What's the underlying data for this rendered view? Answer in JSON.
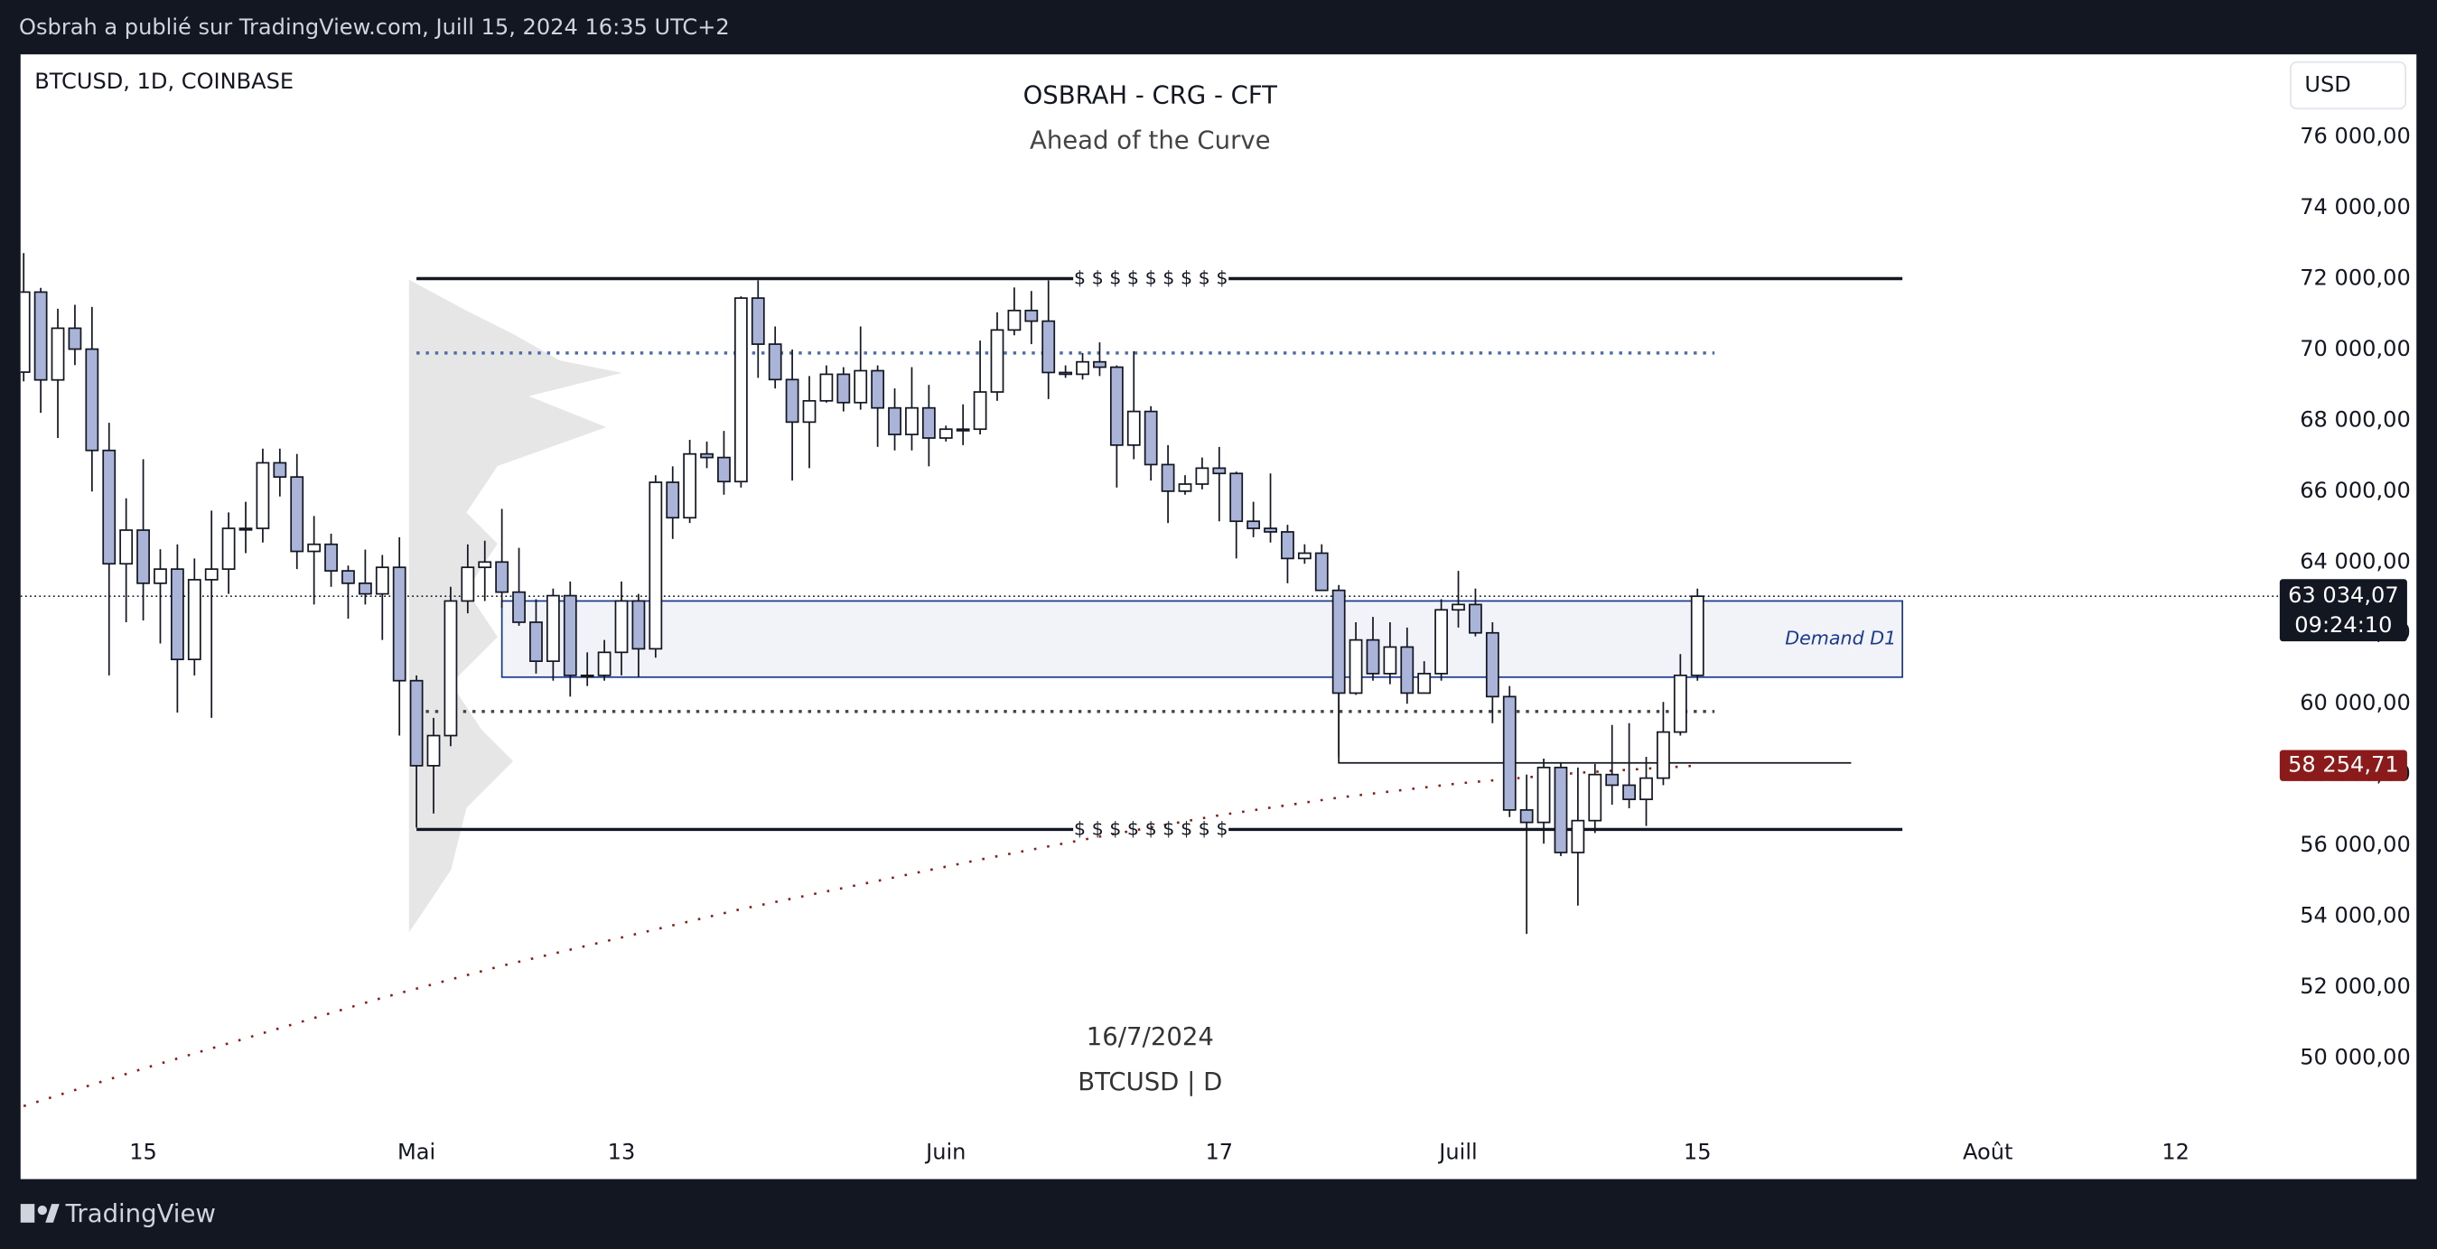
{
  "header": "Osbrah a publié sur TradingView.com, Juill 15, 2024 16:35 UTC+2",
  "footer": "TradingView",
  "chart_data": {
    "type": "candlestick",
    "symbol": "BTCUSD, 1D, COINBASE",
    "title": "OSBRAH - CRG - CFT",
    "subtitle": "Ahead of the Curve",
    "watermark": [
      "16/7/2024",
      "BTCUSD | D"
    ],
    "currency": "USD",
    "x": [
      "2024-04-08",
      "2024-04-09",
      "2024-04-10",
      "2024-04-11",
      "2024-04-12",
      "2024-04-13",
      "2024-04-14",
      "2024-04-15",
      "2024-04-16",
      "2024-04-17",
      "2024-04-18",
      "2024-04-19",
      "2024-04-20",
      "2024-04-21",
      "2024-04-22",
      "2024-04-23",
      "2024-04-24",
      "2024-04-25",
      "2024-04-26",
      "2024-04-27",
      "2024-04-28",
      "2024-04-29",
      "2024-04-30",
      "2024-05-01",
      "2024-05-02",
      "2024-05-03",
      "2024-05-04",
      "2024-05-05",
      "2024-05-06",
      "2024-05-07",
      "2024-05-08",
      "2024-05-09",
      "2024-05-10",
      "2024-05-11",
      "2024-05-12",
      "2024-05-13",
      "2024-05-14",
      "2024-05-15",
      "2024-05-16",
      "2024-05-17",
      "2024-05-18",
      "2024-05-19",
      "2024-05-20",
      "2024-05-21",
      "2024-05-22",
      "2024-05-23",
      "2024-05-24",
      "2024-05-25",
      "2024-05-26",
      "2024-05-27",
      "2024-05-28",
      "2024-05-29",
      "2024-05-30",
      "2024-05-31",
      "2024-06-01",
      "2024-06-02",
      "2024-06-03",
      "2024-06-04",
      "2024-06-05",
      "2024-06-06",
      "2024-06-07",
      "2024-06-08",
      "2024-06-09",
      "2024-06-10",
      "2024-06-11",
      "2024-06-12",
      "2024-06-13",
      "2024-06-14",
      "2024-06-15",
      "2024-06-16",
      "2024-06-17",
      "2024-06-18",
      "2024-06-19",
      "2024-06-20",
      "2024-06-21",
      "2024-06-22",
      "2024-06-23",
      "2024-06-24",
      "2024-06-25",
      "2024-06-26",
      "2024-06-27",
      "2024-06-28",
      "2024-06-29",
      "2024-06-30",
      "2024-07-01",
      "2024-07-02",
      "2024-07-03",
      "2024-07-04",
      "2024-07-05",
      "2024-07-06",
      "2024-07-07",
      "2024-07-08",
      "2024-07-09",
      "2024-07-10",
      "2024-07-11",
      "2024-07-12",
      "2024-07-13",
      "2024-07-14",
      "2024-07-15"
    ],
    "open": [
      69360,
      71620,
      69140,
      70600,
      70010,
      67150,
      63950,
      64900,
      63400,
      63800,
      61250,
      63500,
      63800,
      64950,
      64950,
      66800,
      66400,
      64300,
      64500,
      63750,
      63400,
      63100,
      63850,
      60650,
      58250,
      59100,
      62900,
      63850,
      64000,
      63150,
      62300,
      61200,
      63050,
      60800,
      60800,
      61450,
      62900,
      61550,
      66250,
      65250,
      67050,
      66950,
      66270,
      71450,
      70150,
      69150,
      67950,
      68550,
      69300,
      68500,
      69400,
      68350,
      67600,
      68350,
      67500,
      67750,
      67750,
      68800,
      70550,
      71100,
      70800,
      69350,
      69300,
      69650,
      69500,
      67300,
      68250,
      66750,
      66000,
      66200,
      66650,
      66500,
      65150,
      64950,
      64850,
      64100,
      64250,
      63200,
      60300,
      61800,
      60850,
      61600,
      60300,
      60850,
      62650,
      62800,
      62000,
      60200,
      57000,
      56650,
      58200,
      55800,
      56700,
      58000,
      57700,
      57300,
      57900,
      59200,
      60800
    ],
    "high": [
      72720,
      71740,
      71150,
      71260,
      71200,
      67930,
      65800,
      66900,
      64360,
      64500,
      64100,
      65450,
      65400,
      65700,
      67200,
      67200,
      67050,
      65300,
      64800,
      63900,
      64350,
      64200,
      64700,
      60800,
      59600,
      63300,
      64500,
      64600,
      65500,
      64400,
      62950,
      63250,
      63450,
      61450,
      61800,
      63450,
      63100,
      66450,
      66700,
      67450,
      67400,
      67700,
      71500,
      71950,
      70650,
      70000,
      69250,
      69550,
      69500,
      70650,
      69550,
      68900,
      69500,
      69000,
      67850,
      68450,
      70250,
      71050,
      71750,
      71650,
      71950,
      69550,
      69900,
      70200,
      69550,
      69950,
      68400,
      67300,
      66450,
      66950,
      67250,
      66550,
      65700,
      66500,
      65050,
      64500,
      64500,
      63350,
      62300,
      62450,
      62300,
      62150,
      61200,
      62950,
      63750,
      63250,
      62300,
      60500,
      58000,
      58450,
      58350,
      58200,
      58300,
      59400,
      59450,
      58500,
      60050,
      61400,
      63250
    ],
    "low": [
      69100,
      68210,
      67500,
      69560,
      65990,
      60800,
      62300,
      62350,
      61700,
      59750,
      60800,
      59600,
      63100,
      64250,
      64550,
      65850,
      63800,
      62800,
      63300,
      62400,
      62800,
      61800,
      59100,
      56500,
      56900,
      58800,
      62550,
      62900,
      62700,
      62200,
      60850,
      60650,
      60200,
      60500,
      60650,
      60800,
      60750,
      61300,
      64650,
      65100,
      66650,
      65900,
      66100,
      69200,
      68900,
      66300,
      66650,
      68500,
      68250,
      68300,
      67250,
      67150,
      67150,
      66700,
      67400,
      67300,
      67600,
      68550,
      70400,
      70150,
      68600,
      69200,
      69150,
      69250,
      66100,
      66900,
      66300,
      65100,
      65900,
      66050,
      65150,
      64100,
      64700,
      64550,
      63400,
      63950,
      63200,
      58500,
      60250,
      60650,
      60550,
      60000,
      60300,
      60650,
      62150,
      61900,
      59450,
      56800,
      53500,
      56050,
      55700,
      54300,
      56350,
      57150,
      57050,
      56550,
      57700,
      59100,
      60650
    ],
    "close": [
      71620,
      69140,
      70600,
      70010,
      67150,
      63950,
      64900,
      63400,
      63800,
      61250,
      63500,
      63800,
      64950,
      64950,
      66800,
      66400,
      64300,
      64500,
      63750,
      63400,
      63100,
      63850,
      60650,
      58250,
      59100,
      62900,
      63850,
      64000,
      63150,
      62300,
      61200,
      63050,
      60800,
      60800,
      61450,
      62900,
      61550,
      66250,
      65250,
      67050,
      66950,
      66270,
      71450,
      70150,
      69150,
      67950,
      68550,
      69300,
      68500,
      69400,
      68350,
      67600,
      68350,
      67500,
      67750,
      67750,
      68800,
      70550,
      71100,
      70800,
      69350,
      69300,
      69650,
      69500,
      67300,
      68250,
      66750,
      66000,
      66200,
      66650,
      66500,
      65150,
      64950,
      64850,
      64100,
      64250,
      63200,
      60300,
      61800,
      60850,
      61600,
      60300,
      60850,
      62650,
      62800,
      62000,
      60200,
      57000,
      56650,
      58200,
      55800,
      56700,
      58000,
      57700,
      57300,
      57900,
      59200,
      60800,
      63034.07
    ],
    "up_color": "#ffffff",
    "down_color": "#a9b4d8",
    "ma": {
      "color": "#8b1a1a",
      "x": [
        "2024-04-08",
        "2024-04-15",
        "2024-04-22",
        "2024-04-29",
        "2024-05-06",
        "2024-05-13",
        "2024-05-20",
        "2024-05-27",
        "2024-06-03",
        "2024-06-10",
        "2024-06-17",
        "2024-06-24",
        "2024-07-01",
        "2024-07-08",
        "2024-07-15"
      ],
      "values": [
        48640,
        49700,
        50700,
        51700,
        52600,
        53400,
        54200,
        54900,
        55600,
        56250,
        56850,
        57350,
        57750,
        58050,
        58254.71
      ],
      "value_label": "58 254,71"
    },
    "last_price": {
      "value": 63034.07,
      "label": "63 034,07",
      "countdown": "09:24:10"
    },
    "liquidity": {
      "label": "$ $ $ $ $ $ $ $ $",
      "levels": [
        72000,
        56450
      ],
      "start": "2024-05-01",
      "end": "2024-07-27",
      "label_at": "2024-06-13"
    },
    "dotted_levels": [
      {
        "value": 69900,
        "color": "#4a6fa5",
        "start": "2024-05-01",
        "end": "2024-07-16"
      },
      {
        "value": 59780,
        "color": "#444444",
        "start": "2024-05-01",
        "end": "2024-07-16"
      }
    ],
    "demand_zone": {
      "label": "Demand D1",
      "top": 62900,
      "bottom": 60750,
      "start": "2024-05-06",
      "end": "2024-07-27",
      "color": "#1a3a8f"
    },
    "support": {
      "value": 58330,
      "top": 63000,
      "start": "2024-06-24",
      "end": "2024-07-24"
    },
    "xlim": [
      "2024-04-08",
      "2024-08-18"
    ],
    "xticks": [
      {
        "value": "2024-04-15",
        "label": "15"
      },
      {
        "value": "2024-05-01",
        "label": "Mai"
      },
      {
        "value": "2024-05-13",
        "label": "13"
      },
      {
        "value": "2024-06-01",
        "label": "Juin"
      },
      {
        "value": "2024-06-17",
        "label": "17"
      },
      {
        "value": "2024-07-01",
        "label": "Juill"
      },
      {
        "value": "2024-07-15",
        "label": "15"
      },
      {
        "value": "2024-08-01",
        "label": "Août"
      },
      {
        "value": "2024-08-12",
        "label": "12"
      }
    ],
    "ylim": [
      47940,
      78330
    ],
    "yticks": [
      {
        "value": 50000,
        "label": "50 000,00"
      },
      {
        "value": 52000,
        "label": "52 000,00"
      },
      {
        "value": 54000,
        "label": "54 000,00"
      },
      {
        "value": 56000,
        "label": "56 000,00"
      },
      {
        "value": 58000,
        "label": "58 000,00"
      },
      {
        "value": 60000,
        "label": "60 000,00"
      },
      {
        "value": 62000,
        "label": "62 000,00"
      },
      {
        "value": 64000,
        "label": "64 000,00"
      },
      {
        "value": 66000,
        "label": "66 000,00"
      },
      {
        "value": 68000,
        "label": "68 000,00"
      },
      {
        "value": 70000,
        "label": "70 000,00"
      },
      {
        "value": 72000,
        "label": "72 000,00"
      },
      {
        "value": 74000,
        "label": "74 000,00"
      },
      {
        "value": 76000,
        "label": "76 000,00"
      }
    ]
  }
}
